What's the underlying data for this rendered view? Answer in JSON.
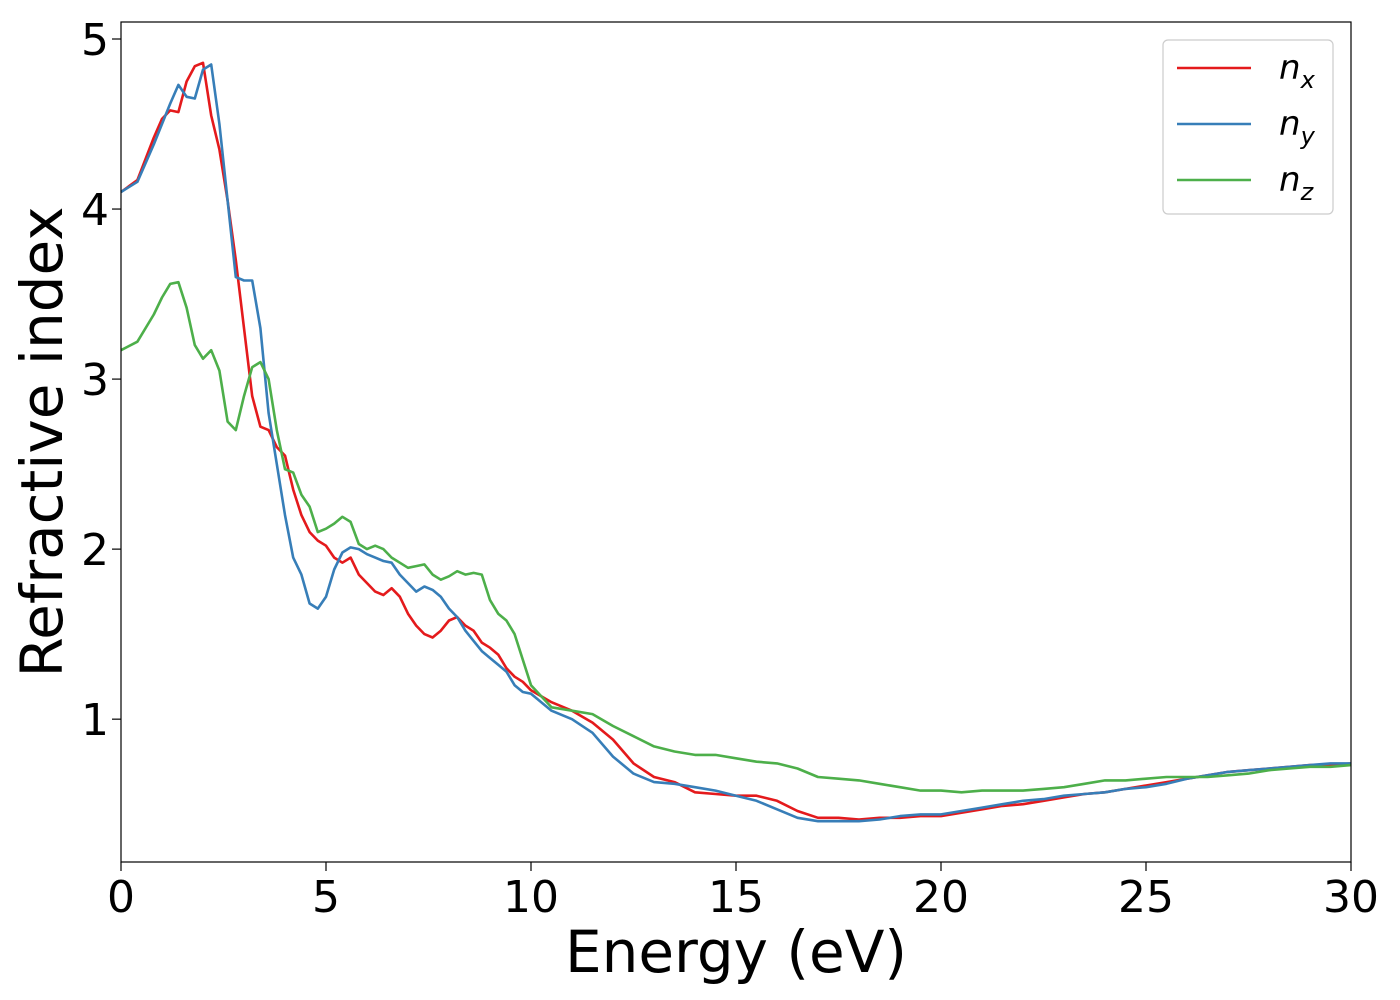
{
  "chart_data": {
    "type": "line",
    "title": "",
    "xlabel": "Energy (eV)",
    "ylabel": "Refractive index",
    "xlim": [
      0,
      30
    ],
    "ylim": [
      0.16,
      5.1
    ],
    "xticks": [
      0,
      5,
      10,
      15,
      20,
      25,
      30
    ],
    "yticks": [
      1,
      2,
      3,
      4,
      5
    ],
    "grid": false,
    "legend_position": "top-right",
    "series": [
      {
        "name": "n",
        "subscript": "x",
        "color": "#e41a1c",
        "points": [
          [
            0,
            4.1
          ],
          [
            0.4,
            4.17
          ],
          [
            0.8,
            4.42
          ],
          [
            1.0,
            4.53
          ],
          [
            1.2,
            4.58
          ],
          [
            1.4,
            4.57
          ],
          [
            1.6,
            4.75
          ],
          [
            1.8,
            4.84
          ],
          [
            2.0,
            4.86
          ],
          [
            2.2,
            4.55
          ],
          [
            2.4,
            4.35
          ],
          [
            2.6,
            4.05
          ],
          [
            2.8,
            3.7
          ],
          [
            3.0,
            3.3
          ],
          [
            3.2,
            2.9
          ],
          [
            3.4,
            2.72
          ],
          [
            3.6,
            2.7
          ],
          [
            3.8,
            2.6
          ],
          [
            4.0,
            2.55
          ],
          [
            4.2,
            2.35
          ],
          [
            4.4,
            2.2
          ],
          [
            4.6,
            2.1
          ],
          [
            4.8,
            2.05
          ],
          [
            5.0,
            2.02
          ],
          [
            5.2,
            1.95
          ],
          [
            5.4,
            1.92
          ],
          [
            5.6,
            1.95
          ],
          [
            5.8,
            1.85
          ],
          [
            6.0,
            1.8
          ],
          [
            6.2,
            1.75
          ],
          [
            6.4,
            1.73
          ],
          [
            6.6,
            1.77
          ],
          [
            6.8,
            1.72
          ],
          [
            7.0,
            1.62
          ],
          [
            7.2,
            1.55
          ],
          [
            7.4,
            1.5
          ],
          [
            7.6,
            1.48
          ],
          [
            7.8,
            1.52
          ],
          [
            8.0,
            1.58
          ],
          [
            8.2,
            1.6
          ],
          [
            8.4,
            1.55
          ],
          [
            8.6,
            1.52
          ],
          [
            8.8,
            1.45
          ],
          [
            9.0,
            1.42
          ],
          [
            9.2,
            1.38
          ],
          [
            9.4,
            1.3
          ],
          [
            9.6,
            1.25
          ],
          [
            9.8,
            1.22
          ],
          [
            10.0,
            1.17
          ],
          [
            10.5,
            1.1
          ],
          [
            11.0,
            1.05
          ],
          [
            11.5,
            0.98
          ],
          [
            12.0,
            0.88
          ],
          [
            12.5,
            0.74
          ],
          [
            13.0,
            0.66
          ],
          [
            13.5,
            0.63
          ],
          [
            14.0,
            0.57
          ],
          [
            14.5,
            0.56
          ],
          [
            15.0,
            0.55
          ],
          [
            15.5,
            0.55
          ],
          [
            16.0,
            0.52
          ],
          [
            16.5,
            0.46
          ],
          [
            17.0,
            0.42
          ],
          [
            17.5,
            0.42
          ],
          [
            18.0,
            0.41
          ],
          [
            18.5,
            0.42
          ],
          [
            19.0,
            0.42
          ],
          [
            19.5,
            0.43
          ],
          [
            20.0,
            0.43
          ],
          [
            20.5,
            0.45
          ],
          [
            21.0,
            0.47
          ],
          [
            21.5,
            0.49
          ],
          [
            22.0,
            0.5
          ],
          [
            22.5,
            0.52
          ],
          [
            23.0,
            0.54
          ],
          [
            23.5,
            0.56
          ],
          [
            24.0,
            0.57
          ],
          [
            24.5,
            0.59
          ],
          [
            25.0,
            0.61
          ],
          [
            25.5,
            0.63
          ],
          [
            26.0,
            0.65
          ],
          [
            26.5,
            0.67
          ],
          [
            27.0,
            0.69
          ],
          [
            27.5,
            0.7
          ],
          [
            28.0,
            0.71
          ],
          [
            28.5,
            0.72
          ],
          [
            29.0,
            0.73
          ],
          [
            29.5,
            0.73
          ],
          [
            30.0,
            0.74
          ]
        ]
      },
      {
        "name": "n",
        "subscript": "y",
        "color": "#377eb8",
        "points": [
          [
            0,
            4.1
          ],
          [
            0.4,
            4.16
          ],
          [
            0.8,
            4.38
          ],
          [
            1.0,
            4.5
          ],
          [
            1.2,
            4.62
          ],
          [
            1.4,
            4.73
          ],
          [
            1.6,
            4.66
          ],
          [
            1.8,
            4.65
          ],
          [
            2.0,
            4.82
          ],
          [
            2.2,
            4.85
          ],
          [
            2.4,
            4.5
          ],
          [
            2.6,
            4.05
          ],
          [
            2.8,
            3.6
          ],
          [
            3.0,
            3.58
          ],
          [
            3.2,
            3.58
          ],
          [
            3.4,
            3.3
          ],
          [
            3.6,
            2.8
          ],
          [
            3.8,
            2.5
          ],
          [
            4.0,
            2.2
          ],
          [
            4.2,
            1.95
          ],
          [
            4.4,
            1.85
          ],
          [
            4.6,
            1.68
          ],
          [
            4.8,
            1.65
          ],
          [
            5.0,
            1.72
          ],
          [
            5.2,
            1.88
          ],
          [
            5.4,
            1.98
          ],
          [
            5.6,
            2.01
          ],
          [
            5.8,
            2.0
          ],
          [
            6.0,
            1.97
          ],
          [
            6.2,
            1.95
          ],
          [
            6.4,
            1.93
          ],
          [
            6.6,
            1.92
          ],
          [
            6.8,
            1.85
          ],
          [
            7.0,
            1.8
          ],
          [
            7.2,
            1.75
          ],
          [
            7.4,
            1.78
          ],
          [
            7.6,
            1.76
          ],
          [
            7.8,
            1.72
          ],
          [
            8.0,
            1.65
          ],
          [
            8.2,
            1.6
          ],
          [
            8.4,
            1.52
          ],
          [
            8.6,
            1.46
          ],
          [
            8.8,
            1.4
          ],
          [
            9.0,
            1.36
          ],
          [
            9.2,
            1.32
          ],
          [
            9.4,
            1.28
          ],
          [
            9.6,
            1.2
          ],
          [
            9.8,
            1.16
          ],
          [
            10.0,
            1.15
          ],
          [
            10.5,
            1.05
          ],
          [
            11.0,
            1.0
          ],
          [
            11.5,
            0.92
          ],
          [
            12.0,
            0.78
          ],
          [
            12.5,
            0.68
          ],
          [
            13.0,
            0.63
          ],
          [
            13.5,
            0.62
          ],
          [
            14.0,
            0.6
          ],
          [
            14.5,
            0.58
          ],
          [
            15.0,
            0.55
          ],
          [
            15.5,
            0.52
          ],
          [
            16.0,
            0.47
          ],
          [
            16.5,
            0.42
          ],
          [
            17.0,
            0.4
          ],
          [
            17.5,
            0.4
          ],
          [
            18.0,
            0.4
          ],
          [
            18.5,
            0.41
          ],
          [
            19.0,
            0.43
          ],
          [
            19.5,
            0.44
          ],
          [
            20.0,
            0.44
          ],
          [
            20.5,
            0.46
          ],
          [
            21.0,
            0.48
          ],
          [
            21.5,
            0.5
          ],
          [
            22.0,
            0.52
          ],
          [
            22.5,
            0.53
          ],
          [
            23.0,
            0.55
          ],
          [
            23.5,
            0.56
          ],
          [
            24.0,
            0.57
          ],
          [
            24.5,
            0.59
          ],
          [
            25.0,
            0.6
          ],
          [
            25.5,
            0.62
          ],
          [
            26.0,
            0.65
          ],
          [
            26.5,
            0.67
          ],
          [
            27.0,
            0.69
          ],
          [
            27.5,
            0.7
          ],
          [
            28.0,
            0.71
          ],
          [
            28.5,
            0.72
          ],
          [
            29.0,
            0.73
          ],
          [
            29.5,
            0.74
          ],
          [
            30.0,
            0.74
          ]
        ]
      },
      {
        "name": "n",
        "subscript": "z",
        "color": "#4daf4a",
        "points": [
          [
            0,
            3.17
          ],
          [
            0.4,
            3.22
          ],
          [
            0.8,
            3.38
          ],
          [
            1.0,
            3.48
          ],
          [
            1.2,
            3.56
          ],
          [
            1.4,
            3.57
          ],
          [
            1.6,
            3.42
          ],
          [
            1.8,
            3.2
          ],
          [
            2.0,
            3.12
          ],
          [
            2.2,
            3.17
          ],
          [
            2.4,
            3.05
          ],
          [
            2.6,
            2.75
          ],
          [
            2.8,
            2.7
          ],
          [
            3.0,
            2.9
          ],
          [
            3.2,
            3.07
          ],
          [
            3.4,
            3.1
          ],
          [
            3.6,
            3.0
          ],
          [
            3.8,
            2.7
          ],
          [
            4.0,
            2.47
          ],
          [
            4.2,
            2.45
          ],
          [
            4.4,
            2.32
          ],
          [
            4.6,
            2.25
          ],
          [
            4.8,
            2.1
          ],
          [
            5.0,
            2.12
          ],
          [
            5.2,
            2.15
          ],
          [
            5.4,
            2.19
          ],
          [
            5.6,
            2.16
          ],
          [
            5.8,
            2.03
          ],
          [
            6.0,
            2.0
          ],
          [
            6.2,
            2.02
          ],
          [
            6.4,
            2.0
          ],
          [
            6.6,
            1.95
          ],
          [
            6.8,
            1.92
          ],
          [
            7.0,
            1.89
          ],
          [
            7.2,
            1.9
          ],
          [
            7.4,
            1.91
          ],
          [
            7.6,
            1.85
          ],
          [
            7.8,
            1.82
          ],
          [
            8.0,
            1.84
          ],
          [
            8.2,
            1.87
          ],
          [
            8.4,
            1.85
          ],
          [
            8.6,
            1.86
          ],
          [
            8.8,
            1.85
          ],
          [
            9.0,
            1.7
          ],
          [
            9.2,
            1.62
          ],
          [
            9.4,
            1.58
          ],
          [
            9.6,
            1.5
          ],
          [
            9.8,
            1.35
          ],
          [
            10.0,
            1.2
          ],
          [
            10.5,
            1.07
          ],
          [
            11.0,
            1.05
          ],
          [
            11.5,
            1.03
          ],
          [
            12.0,
            0.96
          ],
          [
            12.5,
            0.9
          ],
          [
            13.0,
            0.84
          ],
          [
            13.5,
            0.81
          ],
          [
            14.0,
            0.79
          ],
          [
            14.5,
            0.79
          ],
          [
            15.0,
            0.77
          ],
          [
            15.5,
            0.75
          ],
          [
            16.0,
            0.74
          ],
          [
            16.5,
            0.71
          ],
          [
            17.0,
            0.66
          ],
          [
            17.5,
            0.65
          ],
          [
            18.0,
            0.64
          ],
          [
            18.5,
            0.62
          ],
          [
            19.0,
            0.6
          ],
          [
            19.5,
            0.58
          ],
          [
            20.0,
            0.58
          ],
          [
            20.5,
            0.57
          ],
          [
            21.0,
            0.58
          ],
          [
            21.5,
            0.58
          ],
          [
            22.0,
            0.58
          ],
          [
            22.5,
            0.59
          ],
          [
            23.0,
            0.6
          ],
          [
            23.5,
            0.62
          ],
          [
            24.0,
            0.64
          ],
          [
            24.5,
            0.64
          ],
          [
            25.0,
            0.65
          ],
          [
            25.5,
            0.66
          ],
          [
            26.0,
            0.66
          ],
          [
            26.5,
            0.66
          ],
          [
            27.0,
            0.67
          ],
          [
            27.5,
            0.68
          ],
          [
            28.0,
            0.7
          ],
          [
            28.5,
            0.71
          ],
          [
            29.0,
            0.72
          ],
          [
            29.5,
            0.72
          ],
          [
            30.0,
            0.73
          ]
        ]
      }
    ]
  }
}
